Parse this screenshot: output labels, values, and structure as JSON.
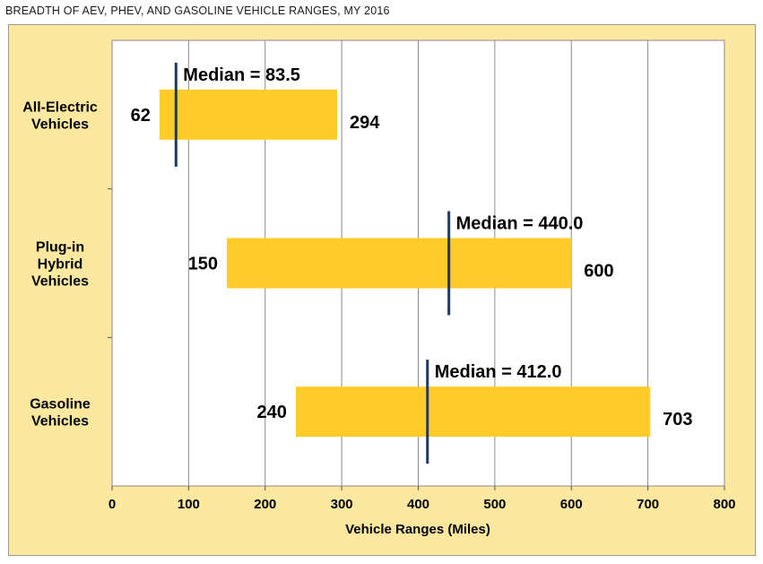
{
  "page_title": "BREADTH OF AEV, PHEV, AND GASOLINE VEHICLE RANGES, MY 2016",
  "chart_data": {
    "type": "bar",
    "orientation": "horizontal",
    "subtype": "floating-range",
    "title": "BREADTH OF AEV, PHEV, AND GASOLINE VEHICLE RANGES, MY 2016",
    "xlabel": "Vehicle Ranges (Miles)",
    "ylabel": "",
    "xlim": [
      0,
      800
    ],
    "xticks": [
      0,
      100,
      200,
      300,
      400,
      500,
      600,
      700,
      800
    ],
    "grid": {
      "vertical": true,
      "horizontal": false
    },
    "bar_color": "#ffcc29",
    "median_color": "#1f3864",
    "plot_background": "#ffffff",
    "frame_background": "#fde8a0",
    "categories": [
      {
        "label_lines": [
          "All-Electric",
          "Vehicles"
        ],
        "min": 62,
        "max": 294,
        "median": 83.5,
        "min_label": "62",
        "max_label": "294",
        "median_label": "Median = 83.5"
      },
      {
        "label_lines": [
          "Plug-in",
          "Hybrid",
          "Vehicles"
        ],
        "min": 150,
        "max": 600,
        "median": 440.0,
        "min_label": "150",
        "max_label": "600",
        "median_label": "Median = 440.0"
      },
      {
        "label_lines": [
          "Gasoline",
          "Vehicles"
        ],
        "min": 240,
        "max": 703,
        "median": 412.0,
        "min_label": "240",
        "max_label": "703",
        "median_label": "Median = 412.0"
      }
    ]
  }
}
